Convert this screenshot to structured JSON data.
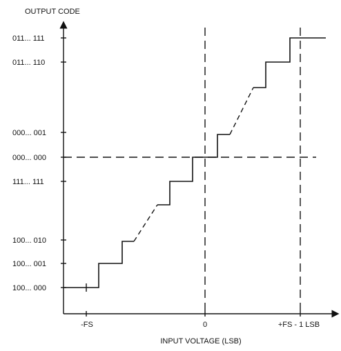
{
  "title": "OUTPUT CODE",
  "x_axis_label": "INPUT VOLTAGE (LSB)",
  "y_ticks": [
    "011... 111",
    "011... 110",
    "000... 001",
    "000... 000",
    "111... 111",
    "100... 010",
    "100... 001",
    "100... 000"
  ],
  "x_ticks": [
    "-FS",
    "0",
    "+FS - 1 LSB"
  ]
}
